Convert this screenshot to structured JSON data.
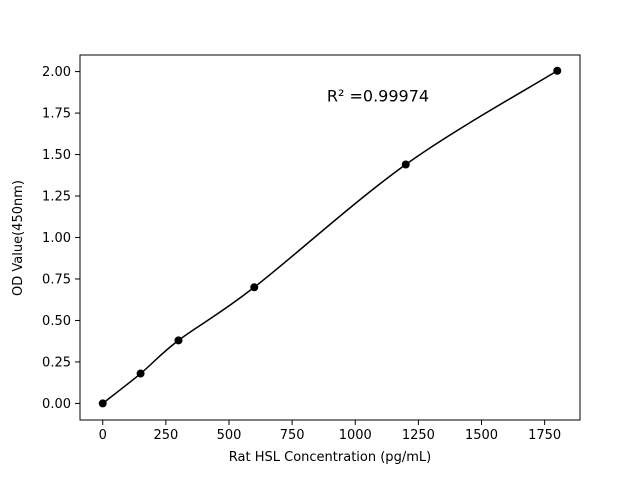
{
  "page": {
    "background_color": "#ffffff"
  },
  "chart_data": {
    "type": "scatter",
    "title": "",
    "xlabel": "Rat HSL Concentration (pg/mL)",
    "ylabel": "OD Value(450nm)",
    "x": [
      0,
      150,
      300,
      600,
      1200,
      1800
    ],
    "y": [
      0.0,
      0.18,
      0.38,
      0.7,
      1.44,
      2.005
    ],
    "fit_line": true,
    "annotation": {
      "text": "R² =0.99974",
      "x": 1090,
      "y": 1.82
    },
    "xlim": [
      -90,
      1890
    ],
    "ylim": [
      -0.1,
      2.1
    ],
    "xticks": [
      0,
      250,
      500,
      750,
      1000,
      1250,
      1500,
      1750
    ],
    "yticks": [
      0.0,
      0.25,
      0.5,
      0.75,
      1.0,
      1.25,
      1.5,
      1.75,
      2.0
    ],
    "ytick_decimals": 2,
    "grid": false,
    "legend_position": "none",
    "marker_color": "#000000",
    "line_color": "#000000",
    "spine_color": "#000000"
  }
}
